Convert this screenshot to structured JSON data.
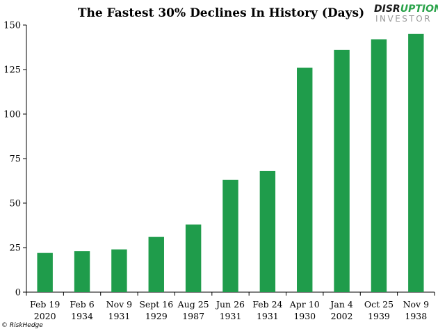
{
  "logo": {
    "line1": "DISRUPTION",
    "line2": "INVESTOR",
    "dark_color": "#1a1a1a",
    "accent_color": "#2aa34a",
    "line2_color": "#9a9a9a"
  },
  "credit": "© RiskHedge",
  "colors": {
    "bar": "#1f9c4b",
    "axis": "#000000",
    "background": "#ffffff"
  },
  "chart_data": {
    "type": "bar",
    "title": "The Fastest 30% Declines In History (Days)",
    "xlabel": "",
    "ylabel": "",
    "ylim": [
      0,
      150
    ],
    "yticks": [
      0,
      25,
      50,
      75,
      100,
      125,
      150
    ],
    "grid": false,
    "legend": "none",
    "categories": [
      [
        "Feb 19",
        "2020"
      ],
      [
        "Feb 6",
        "1934"
      ],
      [
        "Nov 9",
        "1931"
      ],
      [
        "Sept 16",
        "1929"
      ],
      [
        "Aug 25",
        "1987"
      ],
      [
        "Jun 26",
        "1931"
      ],
      [
        "Feb 24",
        "1931"
      ],
      [
        "Apr 10",
        "1930"
      ],
      [
        "Jan 4",
        "2002"
      ],
      [
        "Oct 25",
        "1939"
      ],
      [
        "Nov 9",
        "1938"
      ]
    ],
    "values": [
      22,
      23,
      24,
      31,
      38,
      63,
      68,
      126,
      136,
      142,
      145
    ]
  }
}
